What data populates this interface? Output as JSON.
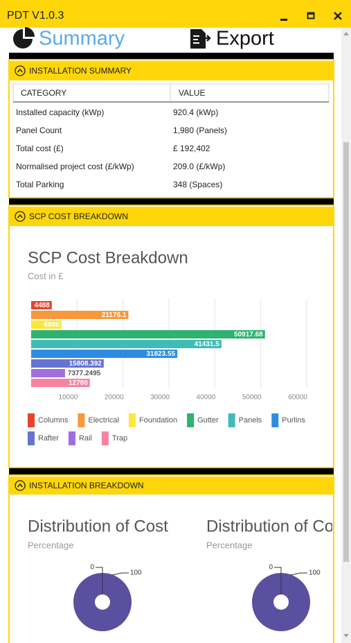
{
  "window": {
    "title": "PDT V1.0.3"
  },
  "tabs": [
    "Summary",
    "Export"
  ],
  "installation_summary": {
    "header": "INSTALLATION SUMMARY",
    "columns": [
      "CATEGORY",
      "VALUE"
    ],
    "rows": [
      [
        "Installed capacity (kWp)",
        "920.4 (kWp)"
      ],
      [
        "Panel Count",
        "1,980 (Panels)"
      ],
      [
        "Total cost (£)",
        "£ 192,402"
      ],
      [
        "Normalised project cost (£/kWp)",
        "209.0 (£/kWp)"
      ],
      [
        "Total Parking",
        "348 (Spaces)"
      ]
    ]
  },
  "scp_cost_breakdown": {
    "header": "SCP COST BREAKDOWN"
  },
  "installation_breakdown": {
    "header": "INSTALLATION BREAKDOWN"
  },
  "chart_data": [
    {
      "type": "bar",
      "orientation": "horizontal",
      "title": "SCP Cost Breakdown",
      "subtitle": "Cost in £",
      "categories": [
        "Columns",
        "Electrical",
        "Foundation",
        "Gutter",
        "Panels",
        "Purlins",
        "Rafter",
        "Rail",
        "Trap"
      ],
      "values": [
        4488,
        21176.1,
        6600,
        50917.68,
        41431.5,
        31823.55,
        15808.392,
        7377.2495,
        12780
      ],
      "colors": [
        "#e8432e",
        "#f7983a",
        "#fce83a",
        "#2fb26f",
        "#3fbcb7",
        "#2e8ce0",
        "#6673d1",
        "#9f6fe0",
        "#f783a0"
      ],
      "xlim": [
        0,
        60000
      ],
      "xticks": [
        10000,
        20000,
        30000,
        40000,
        50000,
        60000
      ],
      "grid": true,
      "legend": "bottom"
    },
    {
      "type": "pie",
      "title": "Distribution of Cost",
      "subtitle": "Percentage",
      "values": [
        0,
        100
      ],
      "color": "#5b4fa0",
      "donut": true
    },
    {
      "type": "pie",
      "title": "Distribution of Cost",
      "subtitle": "Percentage",
      "values": [
        0,
        100
      ],
      "color": "#5b4fa0",
      "donut": true
    }
  ]
}
